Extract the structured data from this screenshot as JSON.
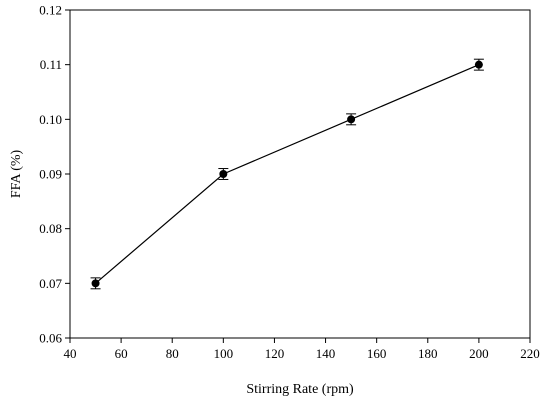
{
  "chart_data": {
    "type": "line",
    "title": "",
    "xlabel": "Stirring Rate (rpm)",
    "ylabel": "FFA (%)",
    "xlim": [
      40,
      220
    ],
    "ylim": [
      0.06,
      0.12
    ],
    "x_ticks": [
      40,
      60,
      80,
      100,
      120,
      140,
      160,
      180,
      200,
      220
    ],
    "y_ticks": [
      0.06,
      0.07,
      0.08,
      0.09,
      0.1,
      0.11,
      0.12
    ],
    "x_tick_labels": [
      "40",
      "60",
      "80",
      "100",
      "120",
      "140",
      "160",
      "180",
      "200",
      "220"
    ],
    "y_tick_labels": [
      "0.06",
      "0.07",
      "0.08",
      "0.09",
      "0.10",
      "0.11",
      "0.12"
    ],
    "grid": false,
    "legend": "none",
    "series": [
      {
        "x": [
          50,
          100,
          150,
          200
        ],
        "y": [
          0.07,
          0.09,
          0.1,
          0.11
        ],
        "error": [
          0.001,
          0.001,
          0.001,
          0.001
        ],
        "marker": "circle",
        "color": "#000000"
      }
    ]
  }
}
